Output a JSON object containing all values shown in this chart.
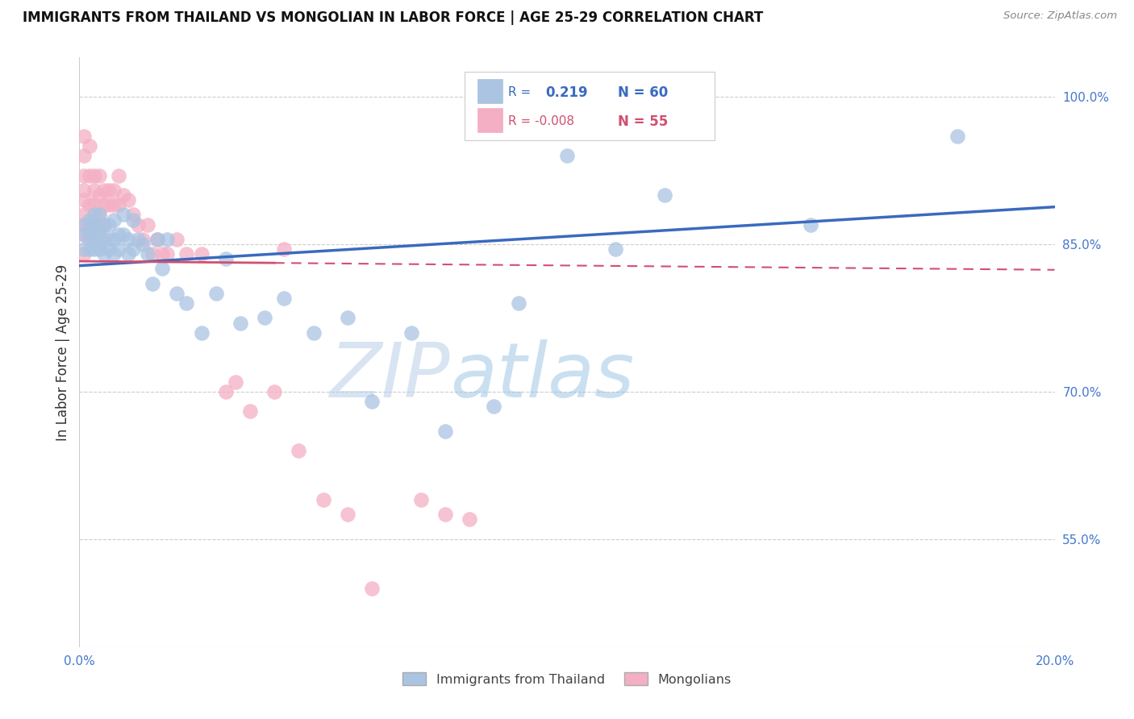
{
  "title": "IMMIGRANTS FROM THAILAND VS MONGOLIAN IN LABOR FORCE | AGE 25-29 CORRELATION CHART",
  "source": "Source: ZipAtlas.com",
  "ylabel": "In Labor Force | Age 25-29",
  "xlim": [
    0.0,
    0.2
  ],
  "ylim": [
    0.44,
    1.04
  ],
  "yticks": [
    0.55,
    0.7,
    0.85,
    1.0
  ],
  "yticklabels": [
    "55.0%",
    "70.0%",
    "85.0%",
    "100.0%"
  ],
  "blue_R": 0.219,
  "blue_N": 60,
  "pink_R": -0.008,
  "pink_N": 55,
  "blue_color": "#aac4e2",
  "pink_color": "#f4afc4",
  "blue_line_color": "#3a6abf",
  "pink_line_color": "#d05070",
  "background_color": "#ffffff",
  "watermark_ZIP": "ZIP",
  "watermark_atlas": "atlas",
  "legend_label_blue": "Immigrants from Thailand",
  "legend_label_pink": "Mongolians",
  "blue_scatter_x": [
    0.001,
    0.001,
    0.001,
    0.002,
    0.002,
    0.002,
    0.003,
    0.003,
    0.003,
    0.003,
    0.003,
    0.004,
    0.004,
    0.004,
    0.004,
    0.004,
    0.005,
    0.005,
    0.005,
    0.006,
    0.006,
    0.006,
    0.007,
    0.007,
    0.007,
    0.008,
    0.008,
    0.009,
    0.009,
    0.01,
    0.01,
    0.011,
    0.011,
    0.012,
    0.013,
    0.014,
    0.015,
    0.016,
    0.017,
    0.018,
    0.02,
    0.022,
    0.025,
    0.028,
    0.03,
    0.033,
    0.038,
    0.042,
    0.048,
    0.055,
    0.06,
    0.068,
    0.075,
    0.085,
    0.09,
    0.1,
    0.11,
    0.12,
    0.15,
    0.18
  ],
  "blue_scatter_y": [
    0.87,
    0.86,
    0.845,
    0.875,
    0.86,
    0.845,
    0.87,
    0.855,
    0.845,
    0.865,
    0.88,
    0.85,
    0.865,
    0.88,
    0.86,
    0.845,
    0.855,
    0.87,
    0.84,
    0.855,
    0.87,
    0.845,
    0.855,
    0.875,
    0.84,
    0.86,
    0.845,
    0.88,
    0.86,
    0.855,
    0.84,
    0.875,
    0.845,
    0.855,
    0.85,
    0.84,
    0.81,
    0.855,
    0.825,
    0.855,
    0.8,
    0.79,
    0.76,
    0.8,
    0.835,
    0.77,
    0.775,
    0.795,
    0.76,
    0.775,
    0.69,
    0.76,
    0.66,
    0.685,
    0.79,
    0.94,
    0.845,
    0.9,
    0.87,
    0.96
  ],
  "pink_scatter_x": [
    0.001,
    0.001,
    0.001,
    0.001,
    0.001,
    0.001,
    0.001,
    0.001,
    0.001,
    0.002,
    0.002,
    0.002,
    0.002,
    0.002,
    0.003,
    0.003,
    0.003,
    0.003,
    0.004,
    0.004,
    0.004,
    0.005,
    0.005,
    0.005,
    0.006,
    0.006,
    0.007,
    0.007,
    0.008,
    0.008,
    0.009,
    0.01,
    0.011,
    0.012,
    0.013,
    0.014,
    0.015,
    0.016,
    0.017,
    0.018,
    0.02,
    0.022,
    0.025,
    0.03,
    0.032,
    0.035,
    0.04,
    0.042,
    0.045,
    0.05,
    0.055,
    0.06,
    0.07,
    0.075,
    0.08
  ],
  "pink_scatter_y": [
    0.96,
    0.94,
    0.92,
    0.905,
    0.895,
    0.88,
    0.87,
    0.86,
    0.84,
    0.95,
    0.92,
    0.89,
    0.87,
    0.855,
    0.92,
    0.905,
    0.89,
    0.87,
    0.92,
    0.9,
    0.88,
    0.905,
    0.89,
    0.87,
    0.905,
    0.89,
    0.905,
    0.89,
    0.92,
    0.89,
    0.9,
    0.895,
    0.88,
    0.87,
    0.855,
    0.87,
    0.84,
    0.855,
    0.84,
    0.84,
    0.855,
    0.84,
    0.84,
    0.7,
    0.71,
    0.68,
    0.7,
    0.845,
    0.64,
    0.59,
    0.575,
    0.5,
    0.59,
    0.575,
    0.57
  ]
}
